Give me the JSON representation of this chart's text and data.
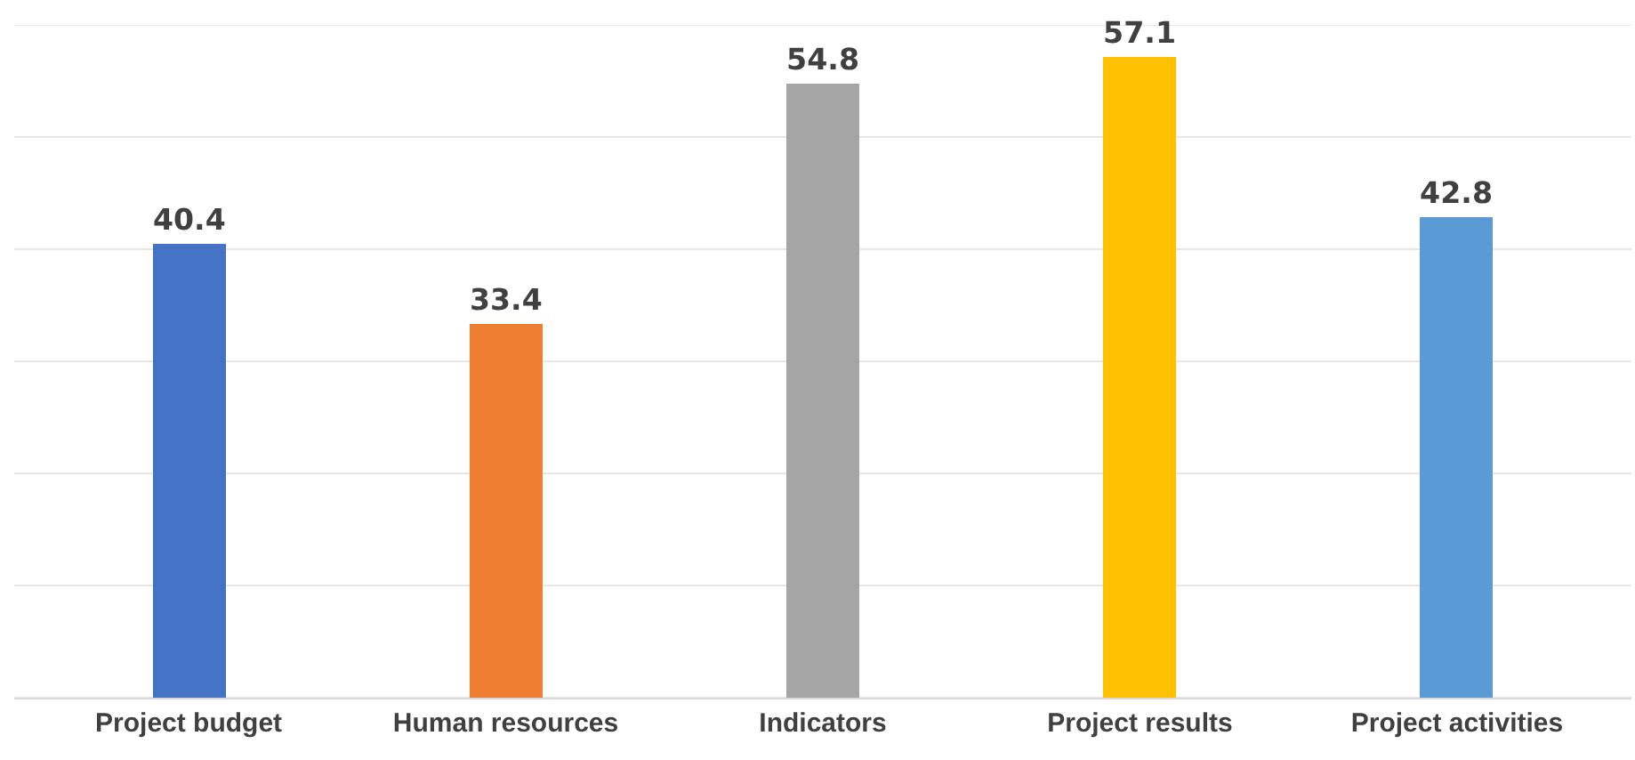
{
  "chart_data": {
    "type": "bar",
    "categories": [
      "Project budget",
      "Human resources",
      "Indicators",
      "Project results",
      "Project activities"
    ],
    "values": [
      40.4,
      33.4,
      54.8,
      57.1,
      42.8
    ],
    "colors": [
      "#4472c4",
      "#ed7d31",
      "#a5a5a5",
      "#ffc000",
      "#5b9bd5"
    ],
    "ylim": [
      0,
      60
    ],
    "yticks": [
      {
        "value": 0,
        "label": null
      },
      {
        "value": 10,
        "label": null
      },
      {
        "value": 20,
        "label": null
      },
      {
        "value": 30,
        "label": null
      },
      {
        "value": 40,
        "label": null
      },
      {
        "value": 50,
        "label": null
      },
      {
        "value": 60,
        "label": null
      }
    ],
    "grid": "y",
    "data_labels": true,
    "tick_labels": "x",
    "legend": false
  }
}
